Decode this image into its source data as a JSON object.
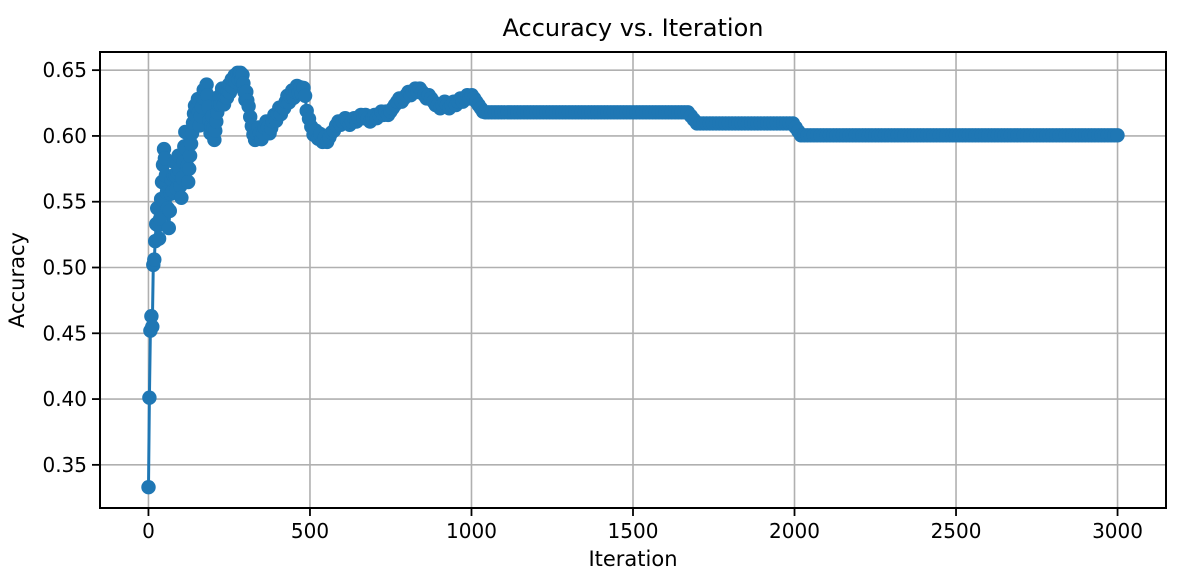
{
  "chart_data": {
    "type": "line",
    "title": "Accuracy vs. Iteration",
    "xlabel": "Iteration",
    "ylabel": "Accuracy",
    "xlim": [
      -150,
      3150
    ],
    "ylim": [
      0.3172,
      0.6638
    ],
    "xticks": [
      0,
      500,
      1000,
      1500,
      2000,
      2500,
      3000
    ],
    "yticks": [
      0.35,
      0.4,
      0.45,
      0.5,
      0.55,
      0.6,
      0.65
    ],
    "grid": true,
    "line_color": "#1f77b4",
    "marker": "o",
    "marker_step": 10,
    "series": [
      {
        "name": "accuracy",
        "keypoints": [
          [
            0,
            0.333
          ],
          [
            3,
            0.401
          ],
          [
            6,
            0.452
          ],
          [
            9,
            0.463
          ],
          [
            12,
            0.455
          ],
          [
            15,
            0.502
          ],
          [
            18,
            0.506
          ],
          [
            21,
            0.52
          ],
          [
            24,
            0.533
          ],
          [
            27,
            0.545
          ],
          [
            30,
            0.532
          ],
          [
            33,
            0.522
          ],
          [
            36,
            0.537
          ],
          [
            39,
            0.552
          ],
          [
            42,
            0.565
          ],
          [
            45,
            0.578
          ],
          [
            48,
            0.59
          ],
          [
            51,
            0.583
          ],
          [
            54,
            0.57
          ],
          [
            57,
            0.557
          ],
          [
            60,
            0.545
          ],
          [
            63,
            0.53
          ],
          [
            66,
            0.543
          ],
          [
            69,
            0.556
          ],
          [
            72,
            0.567
          ],
          [
            75,
            0.558
          ],
          [
            78,
            0.57
          ],
          [
            81,
            0.58
          ],
          [
            84,
            0.57
          ],
          [
            87,
            0.56
          ],
          [
            90,
            0.572
          ],
          [
            93,
            0.585
          ],
          [
            96,
            0.574
          ],
          [
            99,
            0.562
          ],
          [
            102,
            0.553
          ],
          [
            105,
            0.568
          ],
          [
            108,
            0.58
          ],
          [
            111,
            0.592
          ],
          [
            114,
            0.603
          ],
          [
            117,
            0.59
          ],
          [
            120,
            0.577
          ],
          [
            123,
            0.565
          ],
          [
            126,
            0.575
          ],
          [
            129,
            0.585
          ],
          [
            132,
            0.594
          ],
          [
            135,
            0.602
          ],
          [
            138,
            0.61
          ],
          [
            141,
            0.617
          ],
          [
            144,
            0.623
          ],
          [
            147,
            0.615
          ],
          [
            150,
            0.621
          ],
          [
            153,
            0.628
          ],
          [
            156,
            0.618
          ],
          [
            159,
            0.608
          ],
          [
            162,
            0.615
          ],
          [
            165,
            0.622
          ],
          [
            168,
            0.629
          ],
          [
            171,
            0.635
          ],
          [
            174,
            0.628
          ],
          [
            177,
            0.634
          ],
          [
            180,
            0.639
          ],
          [
            183,
            0.631
          ],
          [
            186,
            0.622
          ],
          [
            189,
            0.612
          ],
          [
            192,
            0.602
          ],
          [
            195,
            0.608
          ],
          [
            198,
            0.615
          ],
          [
            201,
            0.606
          ],
          [
            204,
            0.597
          ],
          [
            207,
            0.604
          ],
          [
            210,
            0.611
          ],
          [
            213,
            0.618
          ],
          [
            216,
            0.624
          ],
          [
            219,
            0.63
          ],
          [
            222,
            0.624
          ],
          [
            225,
            0.63
          ],
          [
            228,
            0.636
          ],
          [
            231,
            0.63
          ],
          [
            234,
            0.624
          ],
          [
            237,
            0.63
          ],
          [
            240,
            0.635
          ],
          [
            243,
            0.629
          ],
          [
            246,
            0.634
          ],
          [
            249,
            0.639
          ],
          [
            252,
            0.633
          ],
          [
            255,
            0.638
          ],
          [
            258,
            0.643
          ],
          [
            261,
            0.637
          ],
          [
            264,
            0.642
          ],
          [
            267,
            0.646
          ],
          [
            270,
            0.641
          ],
          [
            273,
            0.645
          ],
          [
            276,
            0.648
          ],
          [
            279,
            0.643
          ],
          [
            282,
            0.647
          ],
          [
            285,
            0.648
          ],
          [
            288,
            0.6425
          ],
          [
            291,
            0.6465
          ],
          [
            294,
            0.64
          ],
          [
            297,
            0.6335
          ],
          [
            300,
            0.6275
          ],
          [
            303,
            0.6335
          ],
          [
            306,
            0.627
          ],
          [
            310,
            0.6225
          ],
          [
            315,
            0.6145
          ],
          [
            320,
            0.6075
          ],
          [
            325,
            0.601
          ],
          [
            330,
            0.597
          ],
          [
            335,
            0.602
          ],
          [
            340,
            0.6065
          ],
          [
            345,
            0.602
          ],
          [
            350,
            0.5975
          ],
          [
            355,
            0.602
          ],
          [
            360,
            0.6065
          ],
          [
            365,
            0.611
          ],
          [
            370,
            0.6065
          ],
          [
            375,
            0.602
          ],
          [
            380,
            0.606
          ],
          [
            385,
            0.611
          ],
          [
            390,
            0.616
          ],
          [
            395,
            0.6115
          ],
          [
            400,
            0.617
          ],
          [
            405,
            0.6215
          ],
          [
            410,
            0.6165
          ],
          [
            415,
            0.6215
          ],
          [
            420,
            0.621
          ],
          [
            425,
            0.626
          ],
          [
            430,
            0.6305
          ],
          [
            435,
            0.6255
          ],
          [
            440,
            0.63
          ],
          [
            445,
            0.6345
          ],
          [
            450,
            0.629
          ],
          [
            455,
            0.6335
          ],
          [
            460,
            0.638
          ],
          [
            465,
            0.633
          ],
          [
            470,
            0.637
          ],
          [
            475,
            0.632
          ],
          [
            480,
            0.6365
          ],
          [
            485,
            0.6305
          ],
          [
            490,
            0.619
          ],
          [
            497,
            0.613
          ],
          [
            504,
            0.607
          ],
          [
            511,
            0.601
          ],
          [
            518,
            0.604
          ],
          [
            525,
            0.598
          ],
          [
            532,
            0.6015
          ],
          [
            539,
            0.5955
          ],
          [
            546,
            0.599
          ],
          [
            553,
            0.5955
          ],
          [
            560,
            0.599
          ],
          [
            567,
            0.6025
          ],
          [
            574,
            0.604
          ],
          [
            581,
            0.608
          ],
          [
            588,
            0.611
          ],
          [
            595,
            0.6085
          ],
          [
            602,
            0.611
          ],
          [
            609,
            0.6135
          ],
          [
            616,
            0.611
          ],
          [
            623,
            0.6085
          ],
          [
            630,
            0.611
          ],
          [
            637,
            0.6135
          ],
          [
            644,
            0.611
          ],
          [
            651,
            0.6135
          ],
          [
            658,
            0.616
          ],
          [
            665,
            0.6135
          ],
          [
            672,
            0.616
          ],
          [
            679,
            0.6135
          ],
          [
            686,
            0.611
          ],
          [
            693,
            0.6135
          ],
          [
            700,
            0.616
          ],
          [
            707,
            0.6135
          ],
          [
            714,
            0.616
          ],
          [
            721,
            0.6185
          ],
          [
            728,
            0.616
          ],
          [
            735,
            0.6185
          ],
          [
            742,
            0.616
          ],
          [
            749,
            0.6185
          ],
          [
            756,
            0.621
          ],
          [
            763,
            0.6235
          ],
          [
            770,
            0.626
          ],
          [
            777,
            0.6285
          ],
          [
            784,
            0.626
          ],
          [
            791,
            0.6285
          ],
          [
            798,
            0.631
          ],
          [
            805,
            0.6335
          ],
          [
            812,
            0.631
          ],
          [
            819,
            0.6335
          ],
          [
            826,
            0.636
          ],
          [
            833,
            0.6335
          ],
          [
            840,
            0.636
          ],
          [
            847,
            0.6335
          ],
          [
            854,
            0.631
          ],
          [
            861,
            0.6285
          ],
          [
            868,
            0.631
          ],
          [
            875,
            0.6285
          ],
          [
            882,
            0.626
          ],
          [
            889,
            0.6235
          ],
          [
            896,
            0.6235
          ],
          [
            903,
            0.621
          ],
          [
            910,
            0.6235
          ],
          [
            917,
            0.626
          ],
          [
            924,
            0.6235
          ],
          [
            931,
            0.621
          ],
          [
            938,
            0.6235
          ],
          [
            945,
            0.626
          ],
          [
            952,
            0.6235
          ],
          [
            959,
            0.626
          ],
          [
            966,
            0.6285
          ],
          [
            973,
            0.626
          ],
          [
            980,
            0.6285
          ],
          [
            987,
            0.631
          ],
          [
            994,
            0.6285
          ],
          [
            1001,
            0.631
          ],
          [
            1008,
            0.6285
          ],
          [
            1015,
            0.626
          ],
          [
            1022,
            0.6235
          ],
          [
            1029,
            0.621
          ],
          [
            1036,
            0.6185
          ],
          [
            1043,
            0.618
          ],
          [
            1670,
            0.618
          ],
          [
            1698,
            0.6095
          ],
          [
            1995,
            0.6095
          ],
          [
            2020,
            0.6005
          ],
          [
            3000,
            0.6005
          ]
        ]
      }
    ]
  }
}
